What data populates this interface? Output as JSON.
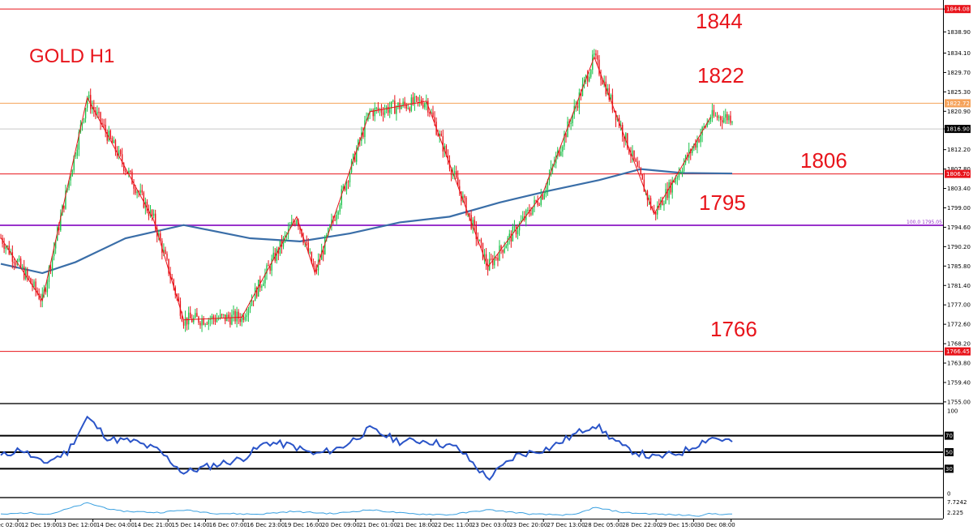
{
  "chart_data": {
    "type": "candlestick",
    "title": "GOLD H1",
    "ylim": [
      1754.8,
      1845.4
    ],
    "yticks": [
      "1844.08",
      "1838.90",
      "1834.10",
      "1829.70",
      "1825.30",
      "1820.90",
      "1816.90",
      "1812.20",
      "1807.80",
      "1803.40",
      "1799.00",
      "1794.60",
      "1790.20",
      "1785.80",
      "1781.40",
      "1777.00",
      "1772.60",
      "1768.20",
      "1763.80",
      "1759.40",
      "1755.00"
    ],
    "x_tick_labels": [
      "12 Dec 02:00",
      "12 Dec 19:00",
      "13 Dec 12:00",
      "14 Dec 04:00",
      "14 Dec 21:00",
      "15 Dec 14:00",
      "16 Dec 07:00",
      "16 Dec 23:00",
      "19 Dec 16:00",
      "20 Dec 09:00",
      "21 Dec 01:00",
      "21 Dec 18:00",
      "22 Dec 11:00",
      "23 Dec 03:00",
      "23 Dec 20:00",
      "27 Dec 13:00",
      "28 Dec 05:00",
      "28 Dec 22:00",
      "29 Dec 15:00",
      "30 Dec 08:00"
    ],
    "levels": [
      {
        "value": 1844.08,
        "label": "1844",
        "tag": "1844.08",
        "color": "#e8141b"
      },
      {
        "value": 1822.72,
        "label": "1822",
        "tag": "1822.72",
        "color": "#f5a25a"
      },
      {
        "value": 1816.9,
        "label": "",
        "tag": "1816.90",
        "color": "#c8c8c8"
      },
      {
        "value": 1806.7,
        "label": "1806",
        "tag": "1806.70",
        "color": "#e8141b"
      },
      {
        "value": 1795.05,
        "label": "1795",
        "tag": "",
        "color": "#9933cc"
      },
      {
        "value": 1766.45,
        "label": "1766",
        "tag": "1766.45",
        "color": "#e8141b"
      }
    ],
    "fib_label": "100.0  1795.05",
    "zigzag": [
      {
        "t": 0,
        "price": 1792.2
      },
      {
        "t": 25,
        "price": 1778.0
      },
      {
        "t": 52,
        "price": 1824.0
      },
      {
        "t": 92,
        "price": 1796.2
      },
      {
        "t": 110,
        "price": 1773.6
      },
      {
        "t": 145,
        "price": 1774.2
      },
      {
        "t": 178,
        "price": 1797.0
      },
      {
        "t": 189,
        "price": 1784.2
      },
      {
        "t": 222,
        "price": 1820.8
      },
      {
        "t": 256,
        "price": 1823.2
      },
      {
        "t": 293,
        "price": 1785.6
      },
      {
        "t": 326,
        "price": 1802.2
      },
      {
        "t": 357,
        "price": 1833.2
      },
      {
        "t": 393,
        "price": 1797.6
      },
      {
        "t": 427,
        "price": 1819.6
      }
    ],
    "ma200": [
      {
        "t": 0,
        "price": 1786.3
      },
      {
        "t": 25,
        "price": 1784.2
      },
      {
        "t": 45,
        "price": 1786.7
      },
      {
        "t": 75,
        "price": 1792.1
      },
      {
        "t": 110,
        "price": 1795.1
      },
      {
        "t": 150,
        "price": 1792.1
      },
      {
        "t": 180,
        "price": 1791.4
      },
      {
        "t": 210,
        "price": 1793.2
      },
      {
        "t": 240,
        "price": 1795.7
      },
      {
        "t": 270,
        "price": 1797.0
      },
      {
        "t": 300,
        "price": 1800.2
      },
      {
        "t": 330,
        "price": 1802.9
      },
      {
        "t": 360,
        "price": 1805.3
      },
      {
        "t": 385,
        "price": 1807.8
      },
      {
        "t": 410,
        "price": 1806.9
      },
      {
        "t": 440,
        "price": 1806.8
      }
    ],
    "rsi": {
      "scale": [
        "100",
        "70",
        "50",
        "30",
        "0"
      ],
      "levels": [
        70,
        50,
        30
      ],
      "points": [
        {
          "t": 0,
          "v": 45
        },
        {
          "t": 12,
          "v": 54
        },
        {
          "t": 25,
          "v": 36
        },
        {
          "t": 40,
          "v": 50
        },
        {
          "t": 52,
          "v": 92
        },
        {
          "t": 65,
          "v": 66
        },
        {
          "t": 80,
          "v": 63
        },
        {
          "t": 95,
          "v": 52
        },
        {
          "t": 110,
          "v": 25
        },
        {
          "t": 125,
          "v": 33
        },
        {
          "t": 145,
          "v": 42
        },
        {
          "t": 160,
          "v": 62
        },
        {
          "t": 175,
          "v": 58
        },
        {
          "t": 189,
          "v": 47
        },
        {
          "t": 205,
          "v": 56
        },
        {
          "t": 222,
          "v": 78
        },
        {
          "t": 240,
          "v": 63
        },
        {
          "t": 256,
          "v": 64
        },
        {
          "t": 275,
          "v": 55
        },
        {
          "t": 293,
          "v": 18
        },
        {
          "t": 310,
          "v": 46
        },
        {
          "t": 330,
          "v": 55
        },
        {
          "t": 357,
          "v": 84
        },
        {
          "t": 375,
          "v": 55
        },
        {
          "t": 393,
          "v": 43
        },
        {
          "t": 410,
          "v": 50
        },
        {
          "t": 427,
          "v": 68
        },
        {
          "t": 440,
          "v": 63
        }
      ]
    },
    "atr": {
      "scale": [
        "7.7242",
        "2.225"
      ],
      "points": [
        {
          "t": 0,
          "v": 2.9
        },
        {
          "t": 15,
          "v": 3.5
        },
        {
          "t": 30,
          "v": 3.1
        },
        {
          "t": 52,
          "v": 7.0
        },
        {
          "t": 70,
          "v": 4.2
        },
        {
          "t": 95,
          "v": 3.6
        },
        {
          "t": 110,
          "v": 4.5
        },
        {
          "t": 130,
          "v": 3.3
        },
        {
          "t": 155,
          "v": 3.0
        },
        {
          "t": 175,
          "v": 4.0
        },
        {
          "t": 200,
          "v": 3.2
        },
        {
          "t": 222,
          "v": 4.6
        },
        {
          "t": 245,
          "v": 3.2
        },
        {
          "t": 270,
          "v": 2.8
        },
        {
          "t": 293,
          "v": 4.6
        },
        {
          "t": 320,
          "v": 3.0
        },
        {
          "t": 345,
          "v": 2.7
        },
        {
          "t": 357,
          "v": 5.4
        },
        {
          "t": 375,
          "v": 3.6
        },
        {
          "t": 400,
          "v": 2.9
        },
        {
          "t": 420,
          "v": 2.5
        },
        {
          "t": 427,
          "v": 3.2
        },
        {
          "t": 440,
          "v": 2.9
        }
      ]
    }
  }
}
